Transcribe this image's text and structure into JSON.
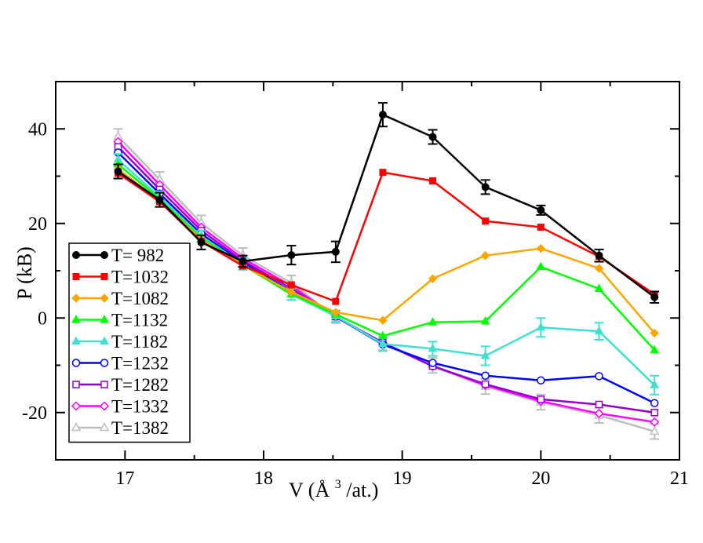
{
  "chart_data": {
    "type": "line",
    "title": "",
    "xlabel": "V (Å³/at.)",
    "xlabel_main": "V (Å",
    "xlabel_sup": "3",
    "xlabel_tail": "/at.)",
    "ylabel": "P (kB)",
    "xlim": [
      16.5,
      21
    ],
    "ylim": [
      -30,
      50
    ],
    "x_ticks": [
      17,
      18,
      19,
      20,
      21
    ],
    "x_tick_labels": [
      "17",
      "18",
      "19",
      "20",
      "21"
    ],
    "y_ticks": [
      -20,
      0,
      20,
      40
    ],
    "y_tick_labels": [
      "-20",
      "0",
      "20",
      "40"
    ],
    "grid": false,
    "legend_position": "bottom-left",
    "x": [
      16.95,
      17.25,
      17.55,
      17.85,
      18.2,
      18.52,
      18.86,
      19.22,
      19.6,
      20.0,
      20.42,
      20.82
    ],
    "series": [
      {
        "name": "T= 982",
        "color": "#000000",
        "marker": "circle-filled",
        "values": [
          31,
          25,
          16,
          12,
          13.3,
          14,
          43,
          38.3,
          27.7,
          22.8,
          13.2,
          4.4
        ],
        "errors": [
          1.5,
          1.5,
          1.5,
          1.2,
          2,
          2.2,
          2.5,
          1.5,
          1.5,
          1.0,
          1.3,
          1.2
        ]
      },
      {
        "name": "T=1032",
        "color": "#ff0000",
        "marker": "square-filled",
        "values": [
          30.6,
          24.6,
          16.2,
          11,
          7,
          3.5,
          30.8,
          29,
          20.5,
          19.2,
          13,
          5
        ],
        "errors": null
      },
      {
        "name": "T=1082",
        "color": "#ffa500",
        "marker": "diamond-filled",
        "values": [
          31.5,
          24.8,
          16.6,
          11.2,
          5.5,
          1.2,
          -0.5,
          8.3,
          13.2,
          14.7,
          10.5,
          -3.2
        ],
        "errors": null
      },
      {
        "name": "T=1132",
        "color": "#00ff00",
        "marker": "triangle-up-filled",
        "values": [
          32.5,
          25.2,
          17,
          11.2,
          5,
          0.8,
          -3.8,
          -0.9,
          -0.7,
          10.8,
          6.2,
          -6.8
        ],
        "errors": null
      },
      {
        "name": "T=1182",
        "color": "#40e0d0",
        "marker": "triangle-up-filled",
        "values": [
          33.5,
          25.6,
          17.3,
          11.4,
          5,
          0.4,
          -5.5,
          -6.5,
          -8,
          -2,
          -2.8,
          -14.2
        ],
        "errors": [
          1.2,
          1.2,
          1.2,
          1.2,
          1.2,
          1.2,
          1.5,
          1.5,
          2,
          2,
          1.8,
          2
        ]
      },
      {
        "name": "T=1232",
        "color": "#0000ff",
        "marker": "circle-open",
        "values": [
          35,
          26.3,
          17.8,
          11.7,
          5.6,
          0.3,
          -5.6,
          -9.5,
          -12.2,
          -13.2,
          -12.3,
          -18
        ],
        "errors": null
      },
      {
        "name": "T=1282",
        "color": "#9400d3",
        "marker": "square-open",
        "values": [
          36.2,
          27.2,
          18.5,
          12.1,
          6.2,
          0.3,
          -5.2,
          -10.2,
          -14,
          -17.2,
          -18.3,
          -20
        ],
        "errors": null
      },
      {
        "name": "T=1332",
        "color": "#ff00ff",
        "marker": "diamond-open",
        "values": [
          37.3,
          28.2,
          19.2,
          12.6,
          6.8,
          0.2,
          -5.3,
          -10.2,
          -14.2,
          -17.6,
          -20.2,
          -22
        ],
        "errors": null
      },
      {
        "name": "T=1382",
        "color": "#bebebe",
        "marker": "triangle-up-open",
        "values": [
          38.4,
          29.3,
          20.1,
          13.2,
          7.4,
          0.2,
          -5.2,
          -10,
          -14.5,
          -17.8,
          -20.6,
          -24
        ],
        "errors": [
          1.6,
          1.6,
          1.6,
          1.6,
          1.6,
          1.3,
          1.6,
          1.6,
          1.6,
          1.6,
          1.6,
          1.6
        ]
      }
    ]
  }
}
